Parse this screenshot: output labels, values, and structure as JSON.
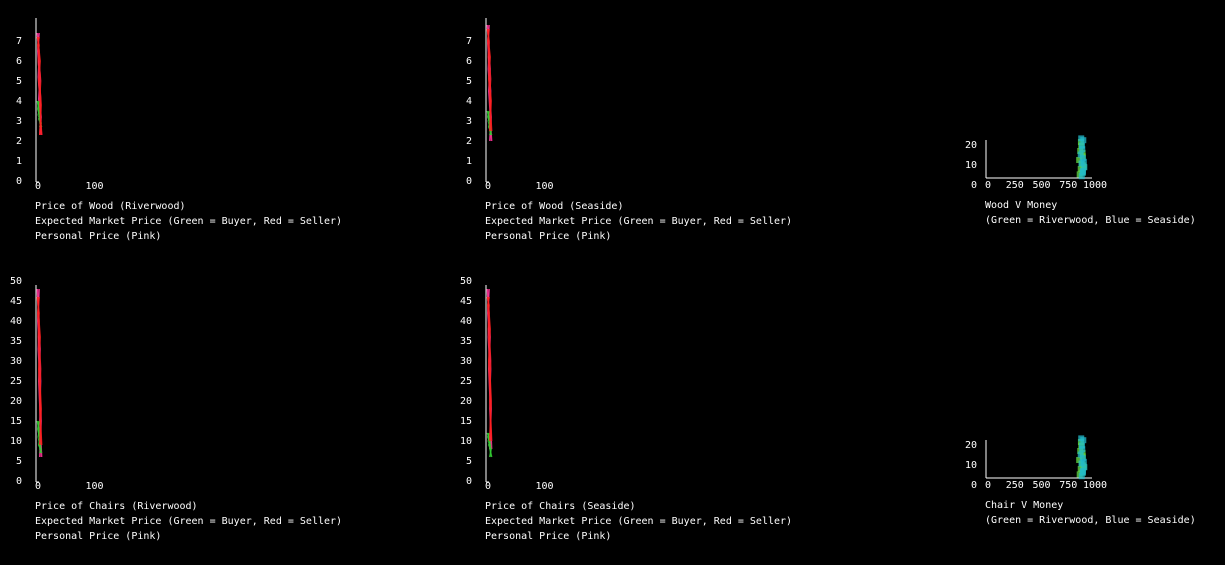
{
  "colors": {
    "background": "#000000",
    "axis": "#ffffff",
    "buyer": "#33cc33",
    "seller": "#ff2020",
    "personal": "#ff3399",
    "riverwood": "#66dd44",
    "seaside": "#22bbcc"
  },
  "chart_data": [
    {
      "type": "line",
      "id": "wood-riverwood",
      "title": "Price of Wood (Riverwood)",
      "caption": [
        "Expected Market Price (Green = Buyer, Red = Seller)",
        "Personal Price (Pink)"
      ],
      "yticks": [
        "0",
        "1",
        "2",
        "3",
        "4",
        "5",
        "6",
        "7"
      ],
      "xticks": [
        "0",
        "100"
      ],
      "ylim": [
        0,
        8
      ],
      "xlim": [
        0,
        100
      ],
      "series": [
        {
          "name": "Personal Price (Pink)",
          "color": "personal",
          "x": [
            0,
            1,
            2,
            3,
            4,
            5
          ],
          "y": [
            7.4,
            6.5,
            5.2,
            4.1,
            3.2,
            2.3
          ]
        },
        {
          "name": "Buyer",
          "color": "buyer",
          "x": [
            0,
            1,
            2,
            3,
            4,
            5
          ],
          "y": [
            4.0,
            3.6,
            3.3,
            3.1,
            2.9,
            2.7
          ]
        },
        {
          "name": "Seller",
          "color": "seller",
          "x": [
            0,
            1,
            2,
            3,
            4,
            5
          ],
          "y": [
            7.2,
            6.8,
            6.0,
            5.0,
            3.8,
            2.3
          ]
        }
      ]
    },
    {
      "type": "line",
      "id": "wood-seaside",
      "title": "Price of Wood (Seaside)",
      "caption": [
        "Expected Market Price (Green = Buyer, Red = Seller)",
        "Personal Price (Pink)"
      ],
      "yticks": [
        "0",
        "1",
        "2",
        "3",
        "4",
        "5",
        "6",
        "7"
      ],
      "xticks": [
        "0",
        "100"
      ],
      "ylim": [
        0,
        8
      ],
      "xlim": [
        0,
        100
      ],
      "series": [
        {
          "name": "Personal Price (Pink)",
          "color": "personal",
          "x": [
            0,
            1,
            2,
            3,
            4,
            5
          ],
          "y": [
            7.8,
            6.9,
            5.6,
            4.5,
            3.2,
            2.0
          ]
        },
        {
          "name": "Buyer",
          "color": "buyer",
          "x": [
            0,
            1,
            2,
            3,
            4,
            5
          ],
          "y": [
            3.5,
            3.2,
            3.0,
            2.7,
            2.5,
            2.3
          ]
        },
        {
          "name": "Seller",
          "color": "seller",
          "x": [
            0,
            1,
            2,
            3,
            4,
            5
          ],
          "y": [
            7.6,
            7.0,
            6.2,
            5.1,
            4.0,
            2.5
          ]
        }
      ]
    },
    {
      "type": "line",
      "id": "chairs-riverwood",
      "title": "Price of Chairs (Riverwood)",
      "caption": [
        "Expected Market Price (Green = Buyer, Red = Seller)",
        "Personal Price (Pink)"
      ],
      "yticks": [
        "0",
        "5",
        "10",
        "15",
        "20",
        "25",
        "30",
        "35",
        "40",
        "45",
        "50"
      ],
      "xticks": [
        "0",
        "100"
      ],
      "ylim": [
        0,
        50
      ],
      "xlim": [
        0,
        100
      ],
      "series": [
        {
          "name": "Personal Price (Pink)",
          "color": "personal",
          "x": [
            0,
            1,
            2,
            3,
            4,
            5
          ],
          "y": [
            48,
            40,
            33,
            25,
            15,
            6
          ]
        },
        {
          "name": "Buyer",
          "color": "buyer",
          "x": [
            0,
            1,
            2,
            3,
            4,
            5
          ],
          "y": [
            15,
            13,
            11,
            9,
            8,
            7
          ]
        },
        {
          "name": "Seller",
          "color": "seller",
          "x": [
            0,
            1,
            2,
            3,
            4,
            5
          ],
          "y": [
            46,
            42,
            36,
            28,
            18,
            9
          ]
        }
      ]
    },
    {
      "type": "line",
      "id": "chairs-seaside",
      "title": "Price of Chairs (Seaside)",
      "caption": [
        "Expected Market Price (Green = Buyer, Red = Seller)",
        "Personal Price (Pink)"
      ],
      "yticks": [
        "0",
        "5",
        "10",
        "15",
        "20",
        "25",
        "30",
        "35",
        "40",
        "45",
        "50"
      ],
      "xticks": [
        "0",
        "100"
      ],
      "ylim": [
        0,
        50
      ],
      "xlim": [
        0,
        100
      ],
      "series": [
        {
          "name": "Personal Price (Pink)",
          "color": "personal",
          "x": [
            0,
            1,
            2,
            3,
            4,
            5
          ],
          "y": [
            48,
            42,
            36,
            28,
            18,
            8
          ]
        },
        {
          "name": "Buyer",
          "color": "buyer",
          "x": [
            0,
            1,
            2,
            3,
            4,
            5
          ],
          "y": [
            12,
            11,
            10,
            9,
            8,
            6
          ]
        },
        {
          "name": "Seller",
          "color": "seller",
          "x": [
            0,
            1,
            2,
            3,
            4,
            5
          ],
          "y": [
            46,
            44,
            38,
            30,
            20,
            10
          ]
        }
      ]
    },
    {
      "type": "scatter",
      "id": "wood-v-money",
      "title": "Wood V Money",
      "caption": [
        "(Green = Riverwood, Blue = Seaside)"
      ],
      "yticks": [
        "0",
        "10",
        "20"
      ],
      "xticks": [
        "0",
        "250",
        "500",
        "750",
        "1000"
      ],
      "ylim": [
        0,
        20
      ],
      "xlim": [
        0,
        1000
      ],
      "series": [
        {
          "name": "Riverwood",
          "color": "riverwood",
          "x": [
            900,
            910,
            920,
            930,
            905,
            915,
            925,
            935,
            895,
            940,
            912,
            928
          ],
          "y": [
            2,
            5,
            8,
            12,
            15,
            18,
            3,
            7,
            10,
            6,
            20,
            14
          ]
        },
        {
          "name": "Seaside",
          "color": "seaside",
          "x": [
            920,
            930,
            940,
            910,
            925,
            935,
            915,
            945,
            930,
            922,
            918,
            932
          ],
          "y": [
            1,
            4,
            9,
            13,
            16,
            21,
            22,
            6,
            11,
            18,
            8,
            3
          ]
        }
      ]
    },
    {
      "type": "scatter",
      "id": "chair-v-money",
      "title": "Chair V Money",
      "caption": [
        "(Green = Riverwood, Blue = Seaside)"
      ],
      "yticks": [
        "0",
        "10",
        "20"
      ],
      "xticks": [
        "0",
        "250",
        "500",
        "750",
        "1000"
      ],
      "ylim": [
        0,
        20
      ],
      "xlim": [
        0,
        1000
      ],
      "series": [
        {
          "name": "Riverwood",
          "color": "riverwood",
          "x": [
            900,
            910,
            920,
            930,
            905,
            915,
            925,
            935,
            895,
            940,
            912,
            928
          ],
          "y": [
            2,
            5,
            8,
            12,
            15,
            18,
            3,
            7,
            10,
            6,
            20,
            14
          ]
        },
        {
          "name": "Seaside",
          "color": "seaside",
          "x": [
            920,
            930,
            940,
            910,
            925,
            935,
            915,
            945,
            930,
            922,
            918,
            932
          ],
          "y": [
            1,
            4,
            9,
            13,
            16,
            21,
            22,
            6,
            11,
            18,
            8,
            3
          ]
        }
      ]
    }
  ]
}
